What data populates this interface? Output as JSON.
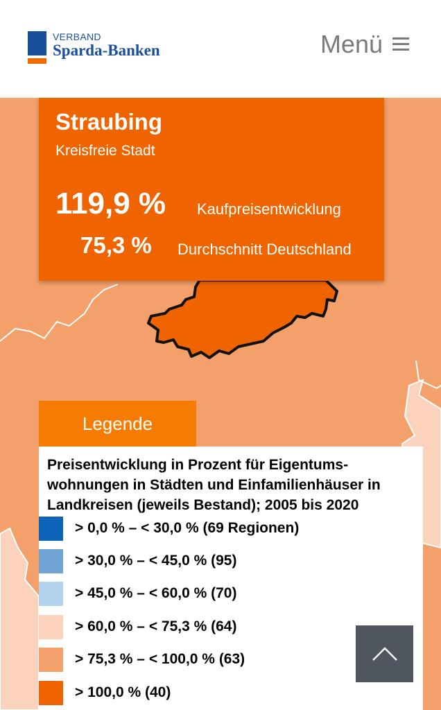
{
  "header": {
    "logo_top": "VERBAND",
    "logo_name": "Sparda-Banken",
    "menu_label": "Menü",
    "menu_icon": "hamburger-icon"
  },
  "info_card": {
    "city": "Straubing",
    "type": "Kreisfreie Stadt",
    "main_value": "119,9 %",
    "main_label": "Kaufpreisentwicklung",
    "avg_value": "75,3 %",
    "avg_label": "Durchschnitt Deutschland",
    "color": "#f06400"
  },
  "legend": {
    "tab_label": "Legende",
    "title": "Preisentwicklung in Prozent für Eigentums-wohnungen in Städten und Einfamilienhäuser in Landkreisen (jeweils Bestand); 2005 bis 2020",
    "items": [
      {
        "label": "> 0,0 % – < 30,0 % (69 Regionen)",
        "color": "#0c63b8"
      },
      {
        "label": "> 30,0 % – < 45,0 % (95)",
        "color": "#6fa3d4"
      },
      {
        "label": "> 45,0 % – < 60,0 % (70)",
        "color": "#b4d3ec"
      },
      {
        "label": "> 60,0 % – < 75,3 % (64)",
        "color": "#fbd3bd"
      },
      {
        "label": "> 75,3 % – < 100,0 % (63)",
        "color": "#f4a06a"
      },
      {
        "label": "> 100,0 % (40)",
        "color": "#f06400"
      }
    ]
  },
  "scroll_top": {
    "icon": "chevron-up-icon"
  },
  "colors": {
    "map_base": "#f4a06a",
    "map_light": "#fbd3bd",
    "highlight_region": "#f06400",
    "brand_blue": "#1a4f9c"
  }
}
